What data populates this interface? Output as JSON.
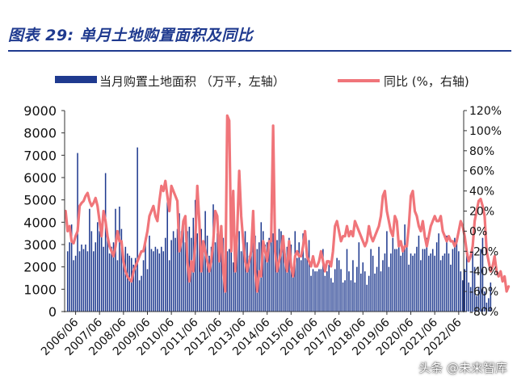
{
  "figure": {
    "title": "图表 29: 单月土地购置面积及同比",
    "watermark": "头条 @未来智库"
  },
  "chart_data": {
    "type": "bar+line",
    "x_tick_labels": [
      "2006/06",
      "2007/06",
      "2008/06",
      "2009/06",
      "2010/06",
      "2011/06",
      "2012/06",
      "2013/06",
      "2014/06",
      "2015/06",
      "2016/06",
      "2017/06",
      "2018/06",
      "2019/06",
      "2020/06",
      "2021/06",
      "2022/06"
    ],
    "series": [
      {
        "name": "当月购置土地面积 （万平，左轴）",
        "type": "bar",
        "axis": "left",
        "color": "#1f3a8f",
        "x_start": "2006/02",
        "values": [
          2700,
          3100,
          3900,
          2300,
          2500,
          7100,
          2700,
          3000,
          2800,
          3000,
          2700,
          4600,
          3600,
          2700,
          3100,
          4000,
          3600,
          3400,
          2900,
          6200,
          3300,
          2600,
          2900,
          3100,
          4600,
          2300,
          4700,
          3700,
          2500,
          2900,
          2600,
          2500,
          2400,
          2100,
          2400,
          7350,
          1400,
          1600,
          2300,
          3300,
          1900,
          3400,
          2800,
          2700,
          2900,
          2800,
          2600,
          2900,
          2700,
          3300,
          4900,
          2300,
          3200,
          3600,
          3300,
          3700,
          4400,
          3600,
          4100,
          3100,
          3600,
          3800,
          3300,
          4200,
          5000,
          3500,
          3600,
          3700,
          3100,
          4500,
          3400,
          2500,
          2900,
          4800,
          3100,
          3500,
          3200,
          3200,
          3300,
          2500,
          2700,
          2800,
          4000,
          2200,
          2400,
          3600,
          3600,
          2700,
          3200,
          3600,
          3100,
          2500,
          3000,
          3800,
          3400,
          2800,
          3100,
          4000,
          3600,
          3000,
          3100,
          3300,
          4400,
          3500,
          3500,
          3200,
          3700,
          3600,
          3100,
          2600,
          2900,
          3300,
          3000,
          1800,
          3600,
          2400,
          3100,
          2300,
          3500,
          2400,
          2800,
          3200,
          1600,
          1900,
          1800,
          1800,
          1900,
          1900,
          2800,
          1600,
          1800,
          2100,
          1500,
          1300,
          1900,
          2400,
          2300,
          1900,
          1300,
          1400,
          2800,
          1800,
          1400,
          2300,
          1300,
          2000,
          3100,
          1700,
          2200,
          1800,
          1200,
          1600,
          2800,
          2500,
          1700,
          2000,
          2900,
          1800,
          2300,
          2600,
          3600,
          2000,
          2600,
          3300,
          2800,
          2800,
          3000,
          2500,
          2700,
          3900,
          2900,
          2100,
          2600,
          2500,
          2600,
          2900,
          3400,
          2300,
          2800,
          2800,
          3300,
          2500,
          2600,
          2800,
          2500,
          3100,
          3500,
          2300,
          2500,
          2600,
          3400,
          2600,
          2100,
          2800,
          3300,
          3300,
          2700,
          1800,
          1400,
          1900,
          2600,
          1300,
          1100,
          3200,
          2000,
          700,
          1100,
          2800,
          3300,
          900,
          400,
          600,
          1300
        ],
        "left_axis_ticks": [
          0,
          1000,
          2000,
          3000,
          4000,
          5000,
          6000,
          7000,
          8000,
          9000
        ],
        "ylim": [
          0,
          9000
        ]
      },
      {
        "name": "同比 (%，右轴)",
        "type": "line",
        "axis": "right",
        "color": "#f0757a",
        "x_start": "2006/01",
        "values": [
          20,
          0,
          5,
          -10,
          -12,
          -5,
          0,
          25,
          28,
          30,
          35,
          38,
          30,
          25,
          28,
          33,
          25,
          10,
          -5,
          20,
          10,
          -5,
          -15,
          -20,
          -25,
          -15,
          0,
          -10,
          -10,
          -30,
          -40,
          -45,
          -48,
          -50,
          -40,
          -35,
          -30,
          -25,
          -20,
          -20,
          -10,
          0,
          15,
          20,
          25,
          15,
          10,
          30,
          45,
          40,
          50,
          35,
          20,
          45,
          40,
          35,
          30,
          -20,
          -10,
          10,
          15,
          -30,
          -50,
          -30,
          -40,
          -10,
          45,
          10,
          -40,
          -10,
          -20,
          -30,
          -40,
          -30,
          -10,
          20,
          15,
          -30,
          5,
          -40,
          -60,
          115,
          110,
          -20,
          40,
          -40,
          0,
          60,
          15,
          -10,
          -30,
          -40,
          -30,
          -20,
          20,
          -40,
          -60,
          -40,
          -45,
          -10,
          -20,
          -30,
          -10,
          -10,
          105,
          -20,
          -40,
          -30,
          -20,
          -5,
          -30,
          -40,
          -10,
          -35,
          -45,
          -25,
          -20,
          -25,
          -25,
          -15,
          0,
          -25,
          -30,
          -35,
          -25,
          -35,
          -35,
          -30,
          -20,
          -30,
          -40,
          -30,
          -30,
          -35,
          -20,
          5,
          10,
          0,
          -10,
          -5,
          -5,
          5,
          -5,
          0,
          -5,
          10,
          5,
          0,
          -5,
          -10,
          -15,
          -10,
          5,
          -5,
          -10,
          -5,
          0,
          5,
          15,
          35,
          40,
          20,
          10,
          0,
          -5,
          15,
          10,
          -15,
          -10,
          -20,
          -15,
          -15,
          5,
          35,
          40,
          20,
          15,
          5,
          0,
          10,
          -5,
          -15,
          -5,
          5,
          10,
          15,
          10,
          10,
          15,
          0,
          -5,
          -10,
          -5,
          -10,
          -10,
          -15,
          -10,
          0,
          10,
          5,
          -5,
          -20,
          -30,
          -25,
          -15,
          10,
          20,
          30,
          32,
          25,
          15,
          -20,
          -30,
          -40,
          -35,
          -25,
          -40,
          -45,
          -40,
          -50,
          -45,
          -60,
          -55
        ],
        "right_axis_ticks": [
          -80,
          -60,
          -40,
          -20,
          0,
          20,
          40,
          60,
          80,
          100,
          120
        ],
        "ylim": [
          -80,
          120
        ],
        "unit": "%"
      }
    ],
    "legend_position": "top",
    "grid": false
  }
}
